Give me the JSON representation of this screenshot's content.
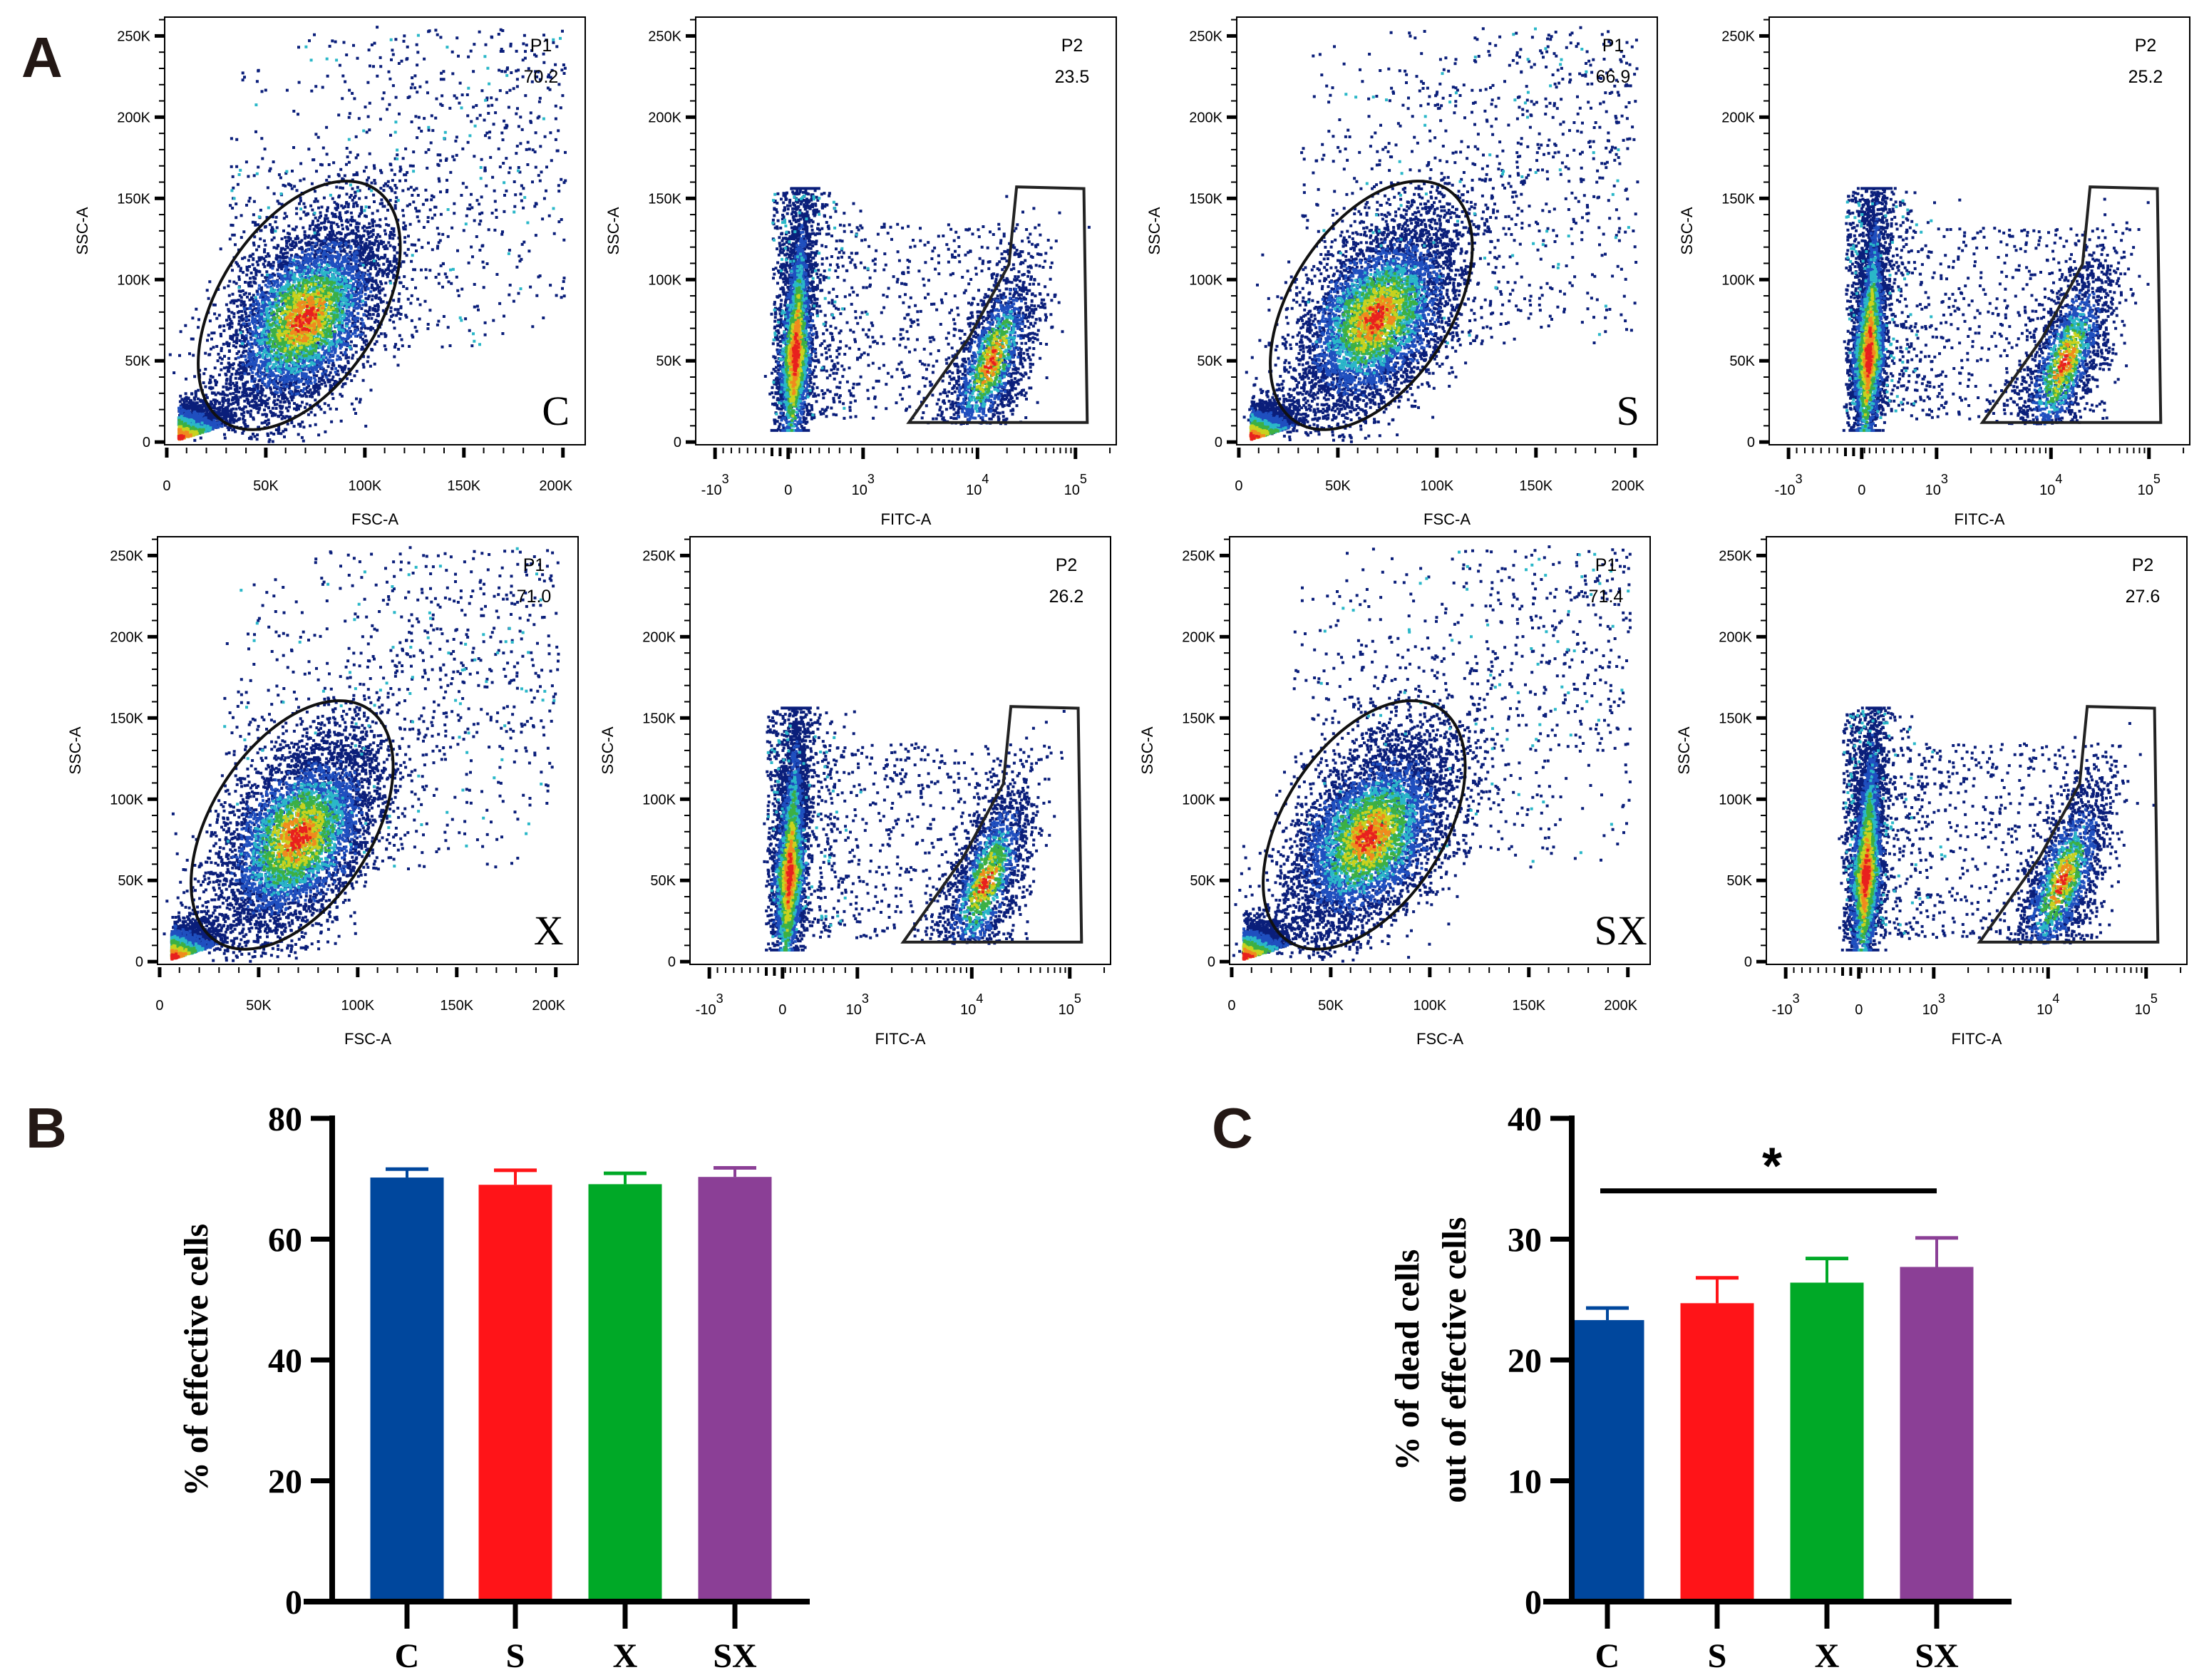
{
  "panel_labels": {
    "a": "A",
    "b": "B",
    "c": "C"
  },
  "chart_data": [
    {
      "type": "scatter",
      "kind": "fsc",
      "group": "C",
      "gate": "P1",
      "gate_pct": "70.2",
      "xlabel": "FSC-A",
      "ylabel": "SSC-A",
      "xticks": [
        "0",
        "50K",
        "100K",
        "150K",
        "200K"
      ],
      "yticks": [
        "0",
        "50K",
        "100K",
        "150K",
        "200K",
        "250K"
      ],
      "xlim": [
        0,
        205000
      ],
      "ylim": [
        0,
        262000
      ]
    },
    {
      "type": "scatter",
      "kind": "fitc",
      "gate": "P2",
      "gate_pct": "23.5",
      "xlabel": "FITC-A",
      "ylabel": "SSC-A",
      "xticks": [
        {
          "b": "-10",
          "e": "3"
        },
        {
          "b": "0",
          "e": ""
        },
        {
          "b": "10",
          "e": "3"
        },
        {
          "b": "10",
          "e": "4"
        },
        {
          "b": "10",
          "e": "5"
        }
      ],
      "yticks": [
        "0",
        "50K",
        "100K",
        "150K",
        "200K",
        "250K"
      ]
    },
    {
      "type": "scatter",
      "kind": "fsc",
      "group": "S",
      "gate": "P1",
      "gate_pct": "66.9",
      "xlabel": "FSC-A",
      "ylabel": "SSC-A",
      "xticks": [
        "0",
        "50K",
        "100K",
        "150K",
        "200K"
      ],
      "yticks": [
        "0",
        "50K",
        "100K",
        "150K",
        "200K",
        "250K"
      ],
      "xlim": [
        0,
        205000
      ],
      "ylim": [
        0,
        262000
      ]
    },
    {
      "type": "scatter",
      "kind": "fitc",
      "gate": "P2",
      "gate_pct": "25.2",
      "xlabel": "FITC-A",
      "ylabel": "SSC-A",
      "xticks": [
        {
          "b": "-10",
          "e": "3"
        },
        {
          "b": "0",
          "e": ""
        },
        {
          "b": "10",
          "e": "3"
        },
        {
          "b": "10",
          "e": "4"
        },
        {
          "b": "10",
          "e": "5"
        }
      ],
      "yticks": [
        "0",
        "50K",
        "100K",
        "150K",
        "200K",
        "250K"
      ]
    },
    {
      "type": "scatter",
      "kind": "fsc",
      "group": "X",
      "gate": "P1",
      "gate_pct": "71.0",
      "xlabel": "FSC-A",
      "ylabel": "SSC-A",
      "xticks": [
        "0",
        "50K",
        "100K",
        "150K",
        "200K"
      ],
      "yticks": [
        "0",
        "50K",
        "100K",
        "150K",
        "200K",
        "250K"
      ],
      "xlim": [
        0,
        205000
      ],
      "ylim": [
        0,
        262000
      ]
    },
    {
      "type": "scatter",
      "kind": "fitc",
      "gate": "P2",
      "gate_pct": "26.2",
      "xlabel": "FITC-A",
      "ylabel": "SSC-A",
      "xticks": [
        {
          "b": "-10",
          "e": "3"
        },
        {
          "b": "0",
          "e": ""
        },
        {
          "b": "10",
          "e": "3"
        },
        {
          "b": "10",
          "e": "4"
        },
        {
          "b": "10",
          "e": "5"
        }
      ],
      "yticks": [
        "0",
        "50K",
        "100K",
        "150K",
        "200K",
        "250K"
      ]
    },
    {
      "type": "scatter",
      "kind": "fsc",
      "group": "SX",
      "gate": "P1",
      "gate_pct": "71.4",
      "xlabel": "FSC-A",
      "ylabel": "SSC-A",
      "xticks": [
        "0",
        "50K",
        "100K",
        "150K",
        "200K"
      ],
      "yticks": [
        "0",
        "50K",
        "100K",
        "150K",
        "200K",
        "250K"
      ],
      "xlim": [
        0,
        205000
      ],
      "ylim": [
        0,
        262000
      ]
    },
    {
      "type": "scatter",
      "kind": "fitc",
      "gate": "P2",
      "gate_pct": "27.6",
      "xlabel": "FITC-A",
      "ylabel": "SSC-A",
      "xticks": [
        {
          "b": "-10",
          "e": "3"
        },
        {
          "b": "0",
          "e": ""
        },
        {
          "b": "10",
          "e": "3"
        },
        {
          "b": "10",
          "e": "4"
        },
        {
          "b": "10",
          "e": "5"
        }
      ],
      "yticks": [
        "0",
        "50K",
        "100K",
        "150K",
        "200K",
        "250K"
      ]
    },
    {
      "type": "bar",
      "id": "B",
      "ylabel": "% of effective cells",
      "ylabel_lines": [
        "% of effective cells"
      ],
      "categories": [
        "C",
        "S",
        "X",
        "SX"
      ],
      "values": [
        70.2,
        69.0,
        69.1,
        70.3
      ],
      "errors": [
        1.4,
        2.4,
        1.8,
        1.5
      ],
      "colors": [
        "#00479d",
        "#ff1418",
        "#00a927",
        "#8b3f96"
      ],
      "ylim": [
        0,
        80
      ],
      "yticks": [
        "0",
        "20",
        "40",
        "60",
        "80"
      ]
    },
    {
      "type": "bar",
      "id": "C",
      "ylabel": "% of dead cells out of effective cells",
      "ylabel_lines": [
        "% of dead cells",
        "out of effective cells"
      ],
      "categories": [
        "C",
        "S",
        "X",
        "SX"
      ],
      "values": [
        23.3,
        24.7,
        26.4,
        27.7
      ],
      "errors": [
        1.0,
        2.1,
        2.0,
        2.4
      ],
      "colors": [
        "#00479d",
        "#ff1418",
        "#00a927",
        "#8b3f96"
      ],
      "ylim": [
        0,
        40
      ],
      "yticks": [
        "0",
        "10",
        "20",
        "30",
        "40"
      ],
      "significance": {
        "from": "C",
        "to": "SX",
        "y": 34,
        "label": "*"
      }
    }
  ]
}
